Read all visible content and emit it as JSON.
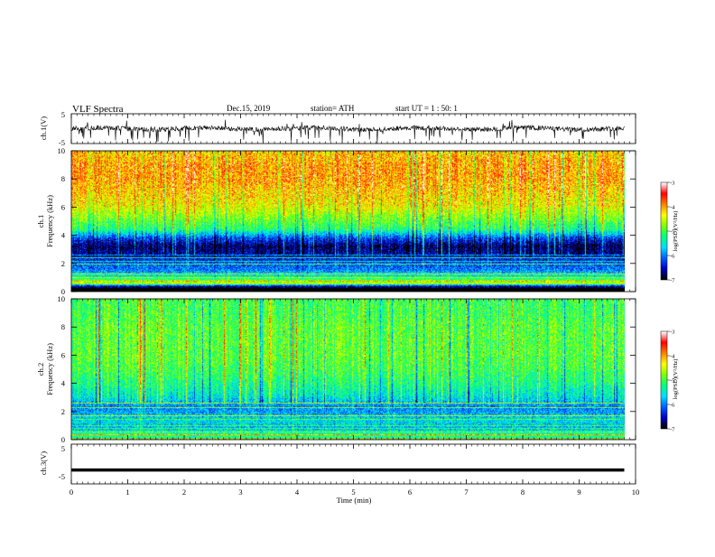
{
  "header": {
    "title": "VLF Spectra",
    "date": "Dec.15, 2019",
    "station": "station= ATH",
    "start": "start UT = 1 : 50: 1"
  },
  "chart_data": [
    {
      "type": "line",
      "panel": "ch1-waveform",
      "ylabel": "ch.1(V)",
      "ylim": [
        -5,
        5
      ],
      "y_ticks": [
        "5",
        "-5"
      ],
      "series": [
        {
          "values_summary": "noisy waveform centered near 0 V with frequent negative spikes"
        }
      ]
    },
    {
      "type": "heatmap",
      "panel": "ch1-spectrogram",
      "ylabel": "Frequency (kHz)",
      "ylabel_channel": "ch.1",
      "ylim": [
        0,
        10
      ],
      "y_ticks": [
        "0",
        "2",
        "4",
        "6",
        "8",
        "10"
      ],
      "colorbar": {
        "label": "log(PSD)(V²/Hz)",
        "ticks": [
          "-3",
          "-4",
          "-5",
          "-6",
          "-7"
        ]
      },
      "profile": [
        {
          "kHz": 0.3,
          "level": -6.8
        },
        {
          "kHz": 0.6,
          "level": -4.6
        },
        {
          "kHz": 1.0,
          "level": -5.4
        },
        {
          "kHz": 1.5,
          "level": -6.0
        },
        {
          "kHz": 2.0,
          "level": -6.2
        },
        {
          "kHz": 2.6,
          "level": -6.6
        },
        {
          "kHz": 3.2,
          "level": -6.8
        },
        {
          "kHz": 3.8,
          "level": -6.2
        },
        {
          "kHz": 4.4,
          "level": -5.2
        },
        {
          "kHz": 5.0,
          "level": -4.9
        },
        {
          "kHz": 6.0,
          "level": -4.4
        },
        {
          "kHz": 7.0,
          "level": -4.2
        },
        {
          "kHz": 8.0,
          "level": -4.0
        },
        {
          "kHz": 9.0,
          "level": -4.0
        },
        {
          "kHz": 10.0,
          "level": -4.2
        }
      ]
    },
    {
      "type": "heatmap",
      "panel": "ch2-spectrogram",
      "ylabel": "Frequency (kHz)",
      "ylabel_channel": "ch.2",
      "ylim": [
        0,
        10
      ],
      "y_ticks": [
        "0",
        "2",
        "4",
        "6",
        "8",
        "10"
      ],
      "colorbar": {
        "label": "log(PSD)(V²/Hz)",
        "ticks": [
          "-3",
          "-4",
          "-5",
          "-6",
          "-7"
        ]
      },
      "profile": [
        {
          "kHz": 0.3,
          "level": -5.2
        },
        {
          "kHz": 0.8,
          "level": -5.8
        },
        {
          "kHz": 1.3,
          "level": -5.6
        },
        {
          "kHz": 1.8,
          "level": -5.8
        },
        {
          "kHz": 2.3,
          "level": -6.0
        },
        {
          "kHz": 3.0,
          "level": -5.5
        },
        {
          "kHz": 4.0,
          "level": -5.2
        },
        {
          "kHz": 5.0,
          "level": -5.0
        },
        {
          "kHz": 6.0,
          "level": -4.9
        },
        {
          "kHz": 7.0,
          "level": -4.9
        },
        {
          "kHz": 8.0,
          "level": -4.9
        },
        {
          "kHz": 9.0,
          "level": -5.0
        },
        {
          "kHz": 10.0,
          "level": -5.0
        }
      ]
    },
    {
      "type": "line",
      "panel": "ch3-waveform",
      "ylabel": "ch.3(V)",
      "ylim": [
        -5,
        5
      ],
      "y_ticks": [
        "5",
        "-5"
      ],
      "series": [
        {
          "constant": -1.5
        }
      ]
    }
  ],
  "x_axis": {
    "label": "Time (min)",
    "ticks": [
      "0",
      "1",
      "2",
      "3",
      "4",
      "5",
      "6",
      "7",
      "8",
      "9",
      "10"
    ],
    "range": [
      0,
      10
    ],
    "data_end": 9.8
  },
  "colors": {
    "colormap": [
      "#000000",
      "#0000c8",
      "#0060ff",
      "#00e0ff",
      "#00ff80",
      "#80ff00",
      "#ffff00",
      "#ff8000",
      "#ff0000",
      "#ffffff"
    ]
  }
}
